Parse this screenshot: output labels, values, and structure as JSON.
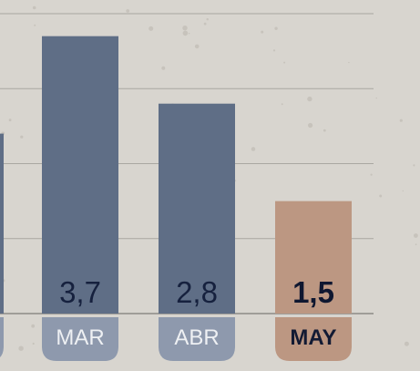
{
  "chart_data": {
    "type": "bar",
    "categories": [
      "",
      "MAR",
      "ABR",
      "MAY"
    ],
    "values": [
      2.4,
      3.7,
      2.8,
      1.5
    ],
    "value_labels": [
      "",
      "3,7",
      "2,8",
      "1,5"
    ],
    "highlight_index": 3,
    "ylim": [
      0,
      4
    ],
    "grid": true,
    "colors": {
      "bar": "#5f6e86",
      "highlight_bar": "#bc9782",
      "label_pill": "#8e99ad",
      "highlight_pill": "#bc9782"
    }
  }
}
